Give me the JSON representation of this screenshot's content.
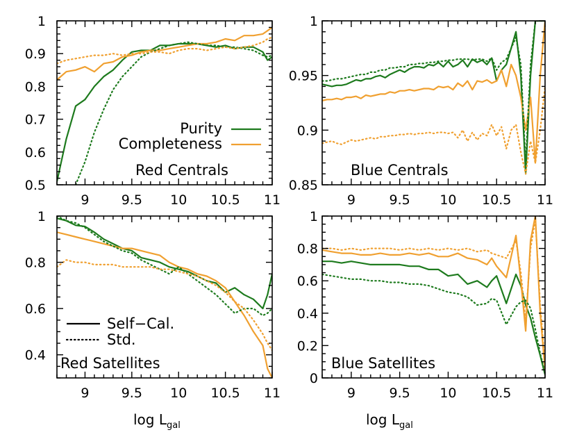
{
  "colors": {
    "purity": "#1d7a1d",
    "completeness": "#f0a030",
    "axes": "#000000"
  },
  "legend_top": {
    "purity": "Purity",
    "completeness": "Completeness"
  },
  "legend_bottom": {
    "self_cal": "Self−Cal.",
    "std": "Std."
  },
  "xlabel": {
    "main": "log L",
    "sub": "gal"
  },
  "chart_data": [
    {
      "type": "line",
      "title": "Red Centrals",
      "xlim": [
        8.7,
        11
      ],
      "ylim": [
        0.5,
        1
      ],
      "xticks": [
        "9",
        "9.5",
        "10",
        "10.5",
        "11"
      ],
      "yticks": [
        "0.5",
        "0.6",
        "0.7",
        "0.8",
        "0.9",
        "1"
      ],
      "x": [
        8.7,
        8.8,
        8.9,
        9.0,
        9.1,
        9.2,
        9.3,
        9.4,
        9.5,
        9.6,
        9.7,
        9.8,
        9.9,
        10.0,
        10.1,
        10.2,
        10.3,
        10.4,
        10.5,
        10.6,
        10.7,
        10.8,
        10.9,
        10.95,
        11.0
      ],
      "series": [
        {
          "name": "Purity",
          "style": "solid",
          "color": "#1d7a1d",
          "values": [
            0.51,
            0.64,
            0.74,
            0.76,
            0.8,
            0.83,
            0.85,
            0.88,
            0.905,
            0.91,
            0.91,
            0.925,
            0.925,
            0.93,
            0.93,
            0.93,
            0.925,
            0.92,
            0.925,
            0.915,
            0.92,
            0.92,
            0.905,
            0.88,
            0.89
          ]
        },
        {
          "name": "Completeness",
          "style": "solid",
          "color": "#f0a030",
          "values": [
            0.82,
            0.845,
            0.85,
            0.86,
            0.845,
            0.87,
            0.875,
            0.89,
            0.895,
            0.905,
            0.91,
            0.91,
            0.915,
            0.92,
            0.925,
            0.93,
            0.93,
            0.935,
            0.945,
            0.94,
            0.955,
            0.955,
            0.96,
            0.97,
            0.98
          ]
        },
        {
          "style": "dotted",
          "color": "#1d7a1d",
          "values": [
            null,
            null,
            0.5,
            0.57,
            0.66,
            0.73,
            0.79,
            0.83,
            0.86,
            0.89,
            0.905,
            0.915,
            0.925,
            0.93,
            0.935,
            0.93,
            0.925,
            0.925,
            0.92,
            0.92,
            0.915,
            0.91,
            0.895,
            0.89,
            0.895
          ]
        },
        {
          "style": "dotted",
          "color": "#f0a030",
          "values": [
            0.87,
            0.88,
            0.885,
            0.89,
            0.895,
            0.895,
            0.9,
            0.895,
            0.9,
            0.9,
            0.905,
            0.905,
            0.9,
            0.91,
            0.915,
            0.915,
            0.91,
            0.915,
            0.92,
            0.915,
            0.92,
            0.925,
            0.935,
            0.945,
            0.95
          ]
        }
      ]
    },
    {
      "type": "line",
      "title": "Blue Centrals",
      "xlim": [
        8.7,
        11
      ],
      "ylim": [
        0.85,
        1
      ],
      "xticks": [
        "9",
        "9.5",
        "10",
        "10.5",
        "11"
      ],
      "yticks": [
        "0.85",
        "0.9",
        "0.95",
        "1"
      ],
      "x": [
        8.7,
        8.75,
        8.8,
        8.85,
        8.9,
        8.95,
        9.0,
        9.05,
        9.1,
        9.15,
        9.2,
        9.25,
        9.3,
        9.35,
        9.4,
        9.45,
        9.5,
        9.55,
        9.6,
        9.65,
        9.7,
        9.75,
        9.8,
        9.85,
        9.9,
        9.95,
        10.0,
        10.05,
        10.1,
        10.15,
        10.2,
        10.25,
        10.3,
        10.35,
        10.4,
        10.45,
        10.5,
        10.55,
        10.6,
        10.65,
        10.7,
        10.75,
        10.8,
        10.85,
        10.9,
        10.95,
        11.0
      ],
      "series": [
        {
          "name": "Purity",
          "style": "solid",
          "color": "#1d7a1d",
          "values": [
            0.942,
            0.941,
            0.94,
            0.941,
            0.941,
            0.942,
            0.944,
            0.946,
            0.945,
            0.947,
            0.947,
            0.949,
            0.95,
            0.948,
            0.951,
            0.953,
            0.955,
            0.953,
            0.956,
            0.958,
            0.958,
            0.957,
            0.96,
            0.959,
            0.962,
            0.958,
            0.963,
            0.958,
            0.96,
            0.964,
            0.958,
            0.965,
            0.962,
            0.964,
            0.96,
            0.966,
            0.945,
            0.955,
            0.96,
            0.975,
            0.99,
            0.95,
            0.86,
            0.95,
            1.0,
            1.0,
            1.0
          ]
        },
        {
          "name": "Completeness",
          "style": "solid",
          "color": "#f0a030",
          "values": [
            0.927,
            0.928,
            0.928,
            0.929,
            0.928,
            0.93,
            0.93,
            0.931,
            0.929,
            0.932,
            0.931,
            0.932,
            0.933,
            0.933,
            0.935,
            0.934,
            0.936,
            0.936,
            0.937,
            0.936,
            0.937,
            0.938,
            0.938,
            0.937,
            0.94,
            0.939,
            0.94,
            0.937,
            0.943,
            0.94,
            0.945,
            0.937,
            0.945,
            0.944,
            0.946,
            0.943,
            0.945,
            0.955,
            0.94,
            0.96,
            0.95,
            0.93,
            0.9,
            0.93,
            0.87,
            0.95,
            1.0
          ]
        },
        {
          "style": "dotted",
          "color": "#1d7a1d",
          "values": [
            0.945,
            0.945,
            0.946,
            0.947,
            0.947,
            0.948,
            0.949,
            0.95,
            0.951,
            0.951,
            0.953,
            0.953,
            0.955,
            0.955,
            0.957,
            0.957,
            0.958,
            0.958,
            0.96,
            0.96,
            0.961,
            0.961,
            0.962,
            0.962,
            0.963,
            0.963,
            0.964,
            0.964,
            0.965,
            0.965,
            0.965,
            0.964,
            0.965,
            0.965,
            0.963,
            0.966,
            0.955,
            0.962,
            0.965,
            0.975,
            0.985,
            0.96,
            0.87,
            0.96,
            1.0,
            1.0,
            1.0
          ]
        },
        {
          "style": "dotted",
          "color": "#f0a030",
          "values": [
            0.888,
            0.889,
            0.89,
            0.888,
            0.887,
            0.889,
            0.891,
            0.89,
            0.891,
            0.892,
            0.893,
            0.892,
            0.894,
            0.894,
            0.895,
            0.895,
            0.896,
            0.896,
            0.897,
            0.896,
            0.897,
            0.897,
            0.898,
            0.897,
            0.898,
            0.898,
            0.897,
            0.898,
            0.893,
            0.9,
            0.89,
            0.898,
            0.891,
            0.897,
            0.895,
            0.905,
            0.895,
            0.903,
            0.883,
            0.9,
            0.905,
            0.88,
            0.86,
            0.89,
            0.87,
            0.9,
            0.94
          ]
        }
      ]
    },
    {
      "type": "line",
      "title": "Red Satellites",
      "xlim": [
        8.7,
        11
      ],
      "ylim": [
        0.3,
        1
      ],
      "xticks": [
        "9",
        "9.5",
        "10",
        "10.5",
        "11"
      ],
      "yticks": [
        "0.4",
        "0.6",
        "0.8",
        "1"
      ],
      "x": [
        8.7,
        8.8,
        8.9,
        9.0,
        9.1,
        9.2,
        9.3,
        9.4,
        9.5,
        9.6,
        9.7,
        9.8,
        9.9,
        10.0,
        10.1,
        10.2,
        10.3,
        10.4,
        10.5,
        10.6,
        10.7,
        10.8,
        10.9,
        10.95,
        11.0
      ],
      "series": [
        {
          "name": "Self−Cal.",
          "style": "solid",
          "color": "#1d7a1d",
          "values": [
            0.99,
            0.98,
            0.96,
            0.955,
            0.93,
            0.9,
            0.88,
            0.86,
            0.85,
            0.82,
            0.81,
            0.8,
            0.78,
            0.77,
            0.76,
            0.74,
            0.72,
            0.71,
            0.67,
            0.69,
            0.66,
            0.64,
            0.6,
            0.66,
            0.75
          ]
        },
        {
          "style": "solid",
          "color": "#f0a030",
          "values": [
            0.93,
            0.92,
            0.91,
            0.9,
            0.89,
            0.88,
            0.87,
            0.86,
            0.86,
            0.85,
            0.84,
            0.83,
            0.8,
            0.78,
            0.77,
            0.75,
            0.74,
            0.72,
            0.69,
            0.63,
            0.57,
            0.5,
            0.44,
            0.34,
            0.3
          ]
        },
        {
          "name": "Std.",
          "style": "dotted",
          "color": "#1d7a1d",
          "values": [
            1.0,
            0.98,
            0.97,
            0.95,
            0.92,
            0.89,
            0.87,
            0.85,
            0.84,
            0.81,
            0.79,
            0.77,
            0.75,
            0.78,
            0.75,
            0.72,
            0.69,
            0.66,
            0.62,
            0.58,
            0.6,
            0.6,
            0.57,
            0.58,
            0.6
          ]
        },
        {
          "style": "dotted",
          "color": "#f0a030",
          "values": [
            0.78,
            0.81,
            0.8,
            0.8,
            0.79,
            0.79,
            0.79,
            0.78,
            0.78,
            0.78,
            0.78,
            0.77,
            0.77,
            0.76,
            0.75,
            0.74,
            0.72,
            0.7,
            0.67,
            0.63,
            0.6,
            0.55,
            0.49,
            0.45,
            0.42
          ]
        }
      ]
    },
    {
      "type": "line",
      "title": "Blue Satellites",
      "xlim": [
        8.7,
        11
      ],
      "ylim": [
        0,
        1
      ],
      "xticks": [
        "9",
        "9.5",
        "10",
        "10.5",
        "11"
      ],
      "yticks": [
        "0",
        "0.2",
        "0.4",
        "0.6",
        "0.8",
        "1"
      ],
      "x": [
        8.7,
        8.8,
        8.9,
        9.0,
        9.1,
        9.2,
        9.3,
        9.4,
        9.5,
        9.6,
        9.7,
        9.8,
        9.9,
        10.0,
        10.1,
        10.2,
        10.3,
        10.4,
        10.45,
        10.5,
        10.6,
        10.7,
        10.75,
        10.8,
        10.85,
        10.9,
        10.95,
        11.0
      ],
      "series": [
        {
          "style": "solid",
          "color": "#1d7a1d",
          "values": [
            0.72,
            0.72,
            0.71,
            0.72,
            0.71,
            0.7,
            0.7,
            0.7,
            0.7,
            0.69,
            0.69,
            0.67,
            0.67,
            0.63,
            0.64,
            0.58,
            0.6,
            0.56,
            0.6,
            0.63,
            0.46,
            0.64,
            0.57,
            0.45,
            0.37,
            0.25,
            0.14,
            0.02
          ]
        },
        {
          "style": "solid",
          "color": "#f0a030",
          "values": [
            0.79,
            0.78,
            0.77,
            0.77,
            0.76,
            0.76,
            0.77,
            0.76,
            0.76,
            0.77,
            0.76,
            0.77,
            0.75,
            0.75,
            0.77,
            0.74,
            0.73,
            0.7,
            0.74,
            0.69,
            0.62,
            0.88,
            0.6,
            0.29,
            0.85,
            1.0,
            0.4,
            0.05
          ]
        },
        {
          "style": "dotted",
          "color": "#1d7a1d",
          "values": [
            0.64,
            0.63,
            0.62,
            0.61,
            0.61,
            0.6,
            0.6,
            0.59,
            0.59,
            0.58,
            0.58,
            0.57,
            0.55,
            0.53,
            0.52,
            0.5,
            0.45,
            0.46,
            0.49,
            0.48,
            0.33,
            0.44,
            0.47,
            0.48,
            0.43,
            0.3,
            0.15,
            0.03
          ]
        },
        {
          "style": "dotted",
          "color": "#f0a030",
          "values": [
            0.8,
            0.8,
            0.79,
            0.8,
            0.79,
            0.8,
            0.8,
            0.8,
            0.79,
            0.8,
            0.79,
            0.8,
            0.79,
            0.8,
            0.79,
            0.8,
            0.78,
            0.79,
            0.77,
            0.76,
            0.74,
            0.85,
            0.65,
            0.35,
            0.8,
            0.98,
            0.45,
            0.08
          ]
        }
      ]
    }
  ]
}
